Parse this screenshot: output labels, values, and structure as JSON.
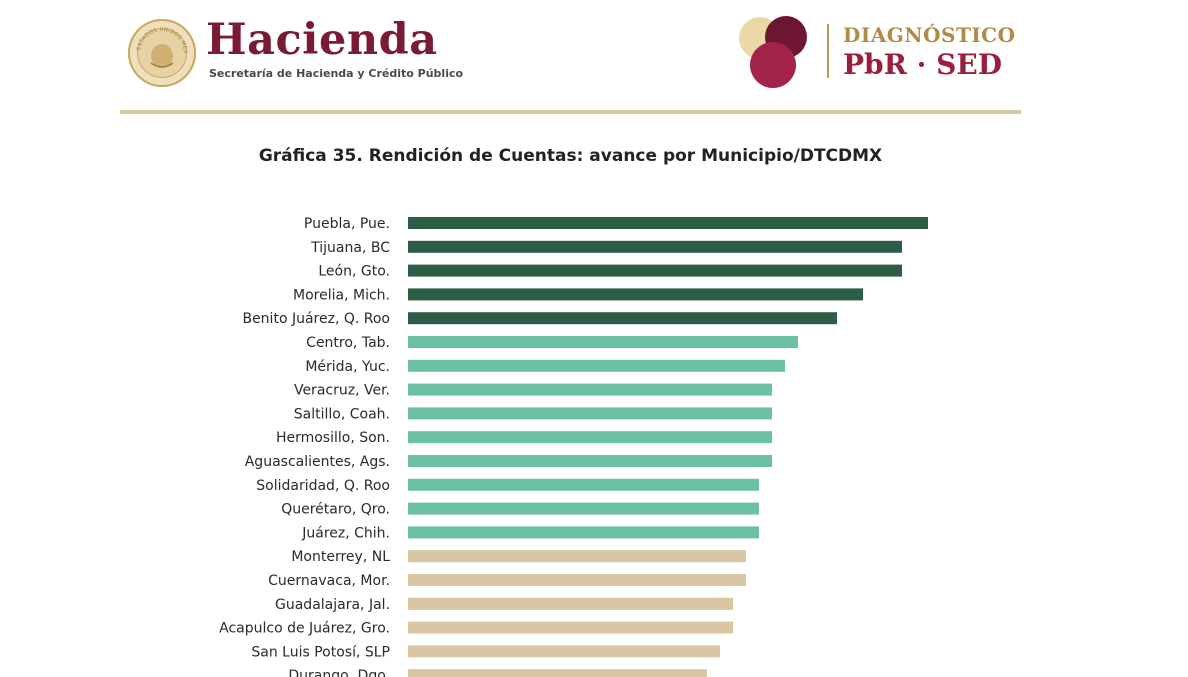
{
  "header": {
    "brand_title": "Hacienda",
    "brand_subtitle": "Secretaría de Hacienda y Crédito Público",
    "seal_text": "ESTADOS UNIDOS MEXICANOS",
    "program_top": "DIAGNÓSTICO",
    "program_bottom": "PbR · SED"
  },
  "colors": {
    "brand": "#7a1b35",
    "gold": "#b18a47",
    "rule": "#d8c8a0",
    "dark_green": "#2d5e45",
    "teal": "#6cc1a2",
    "tan": "#d9c6a2"
  },
  "chart_data": {
    "type": "bar",
    "orientation": "horizontal",
    "title": "Gráfica 35. Rendición de Cuentas: avance por Municipio/DTCDMX",
    "xlabel": "",
    "ylabel": "",
    "xlim": [
      0,
      100
    ],
    "grid": false,
    "legend": "none",
    "categories": [
      "Puebla, Pue.",
      "Tijuana, BC",
      "León, Gto.",
      "Morelia, Mich.",
      "Benito Juárez, Q. Roo",
      "Centro, Tab.",
      "Mérida, Yuc.",
      "Veracruz, Ver.",
      "Saltillo, Coah.",
      "Hermosillo, Son.",
      "Aguascalientes, Ags.",
      "Solidaridad, Q. Roo",
      "Querétaro, Qro.",
      "Juárez, Chih.",
      "Monterrey, NL",
      "Cuernavaca, Mor.",
      "Guadalajara, Jal.",
      "Acapulco de Juárez, Gro.",
      "San Luis Potosí, SLP",
      "Durango, Dgo."
    ],
    "values": [
      80,
      76,
      76,
      70,
      66,
      60,
      58,
      56,
      56,
      56,
      56,
      54,
      54,
      54,
      52,
      52,
      50,
      50,
      48,
      46
    ],
    "bar_colors": [
      "#2d5e45",
      "#2d5e45",
      "#2d5e45",
      "#2d5e45",
      "#2d5e45",
      "#6cc1a2",
      "#6cc1a2",
      "#6cc1a2",
      "#6cc1a2",
      "#6cc1a2",
      "#6cc1a2",
      "#6cc1a2",
      "#6cc1a2",
      "#6cc1a2",
      "#d9c6a2",
      "#d9c6a2",
      "#d9c6a2",
      "#d9c6a2",
      "#d9c6a2",
      "#d9c6a2"
    ]
  }
}
